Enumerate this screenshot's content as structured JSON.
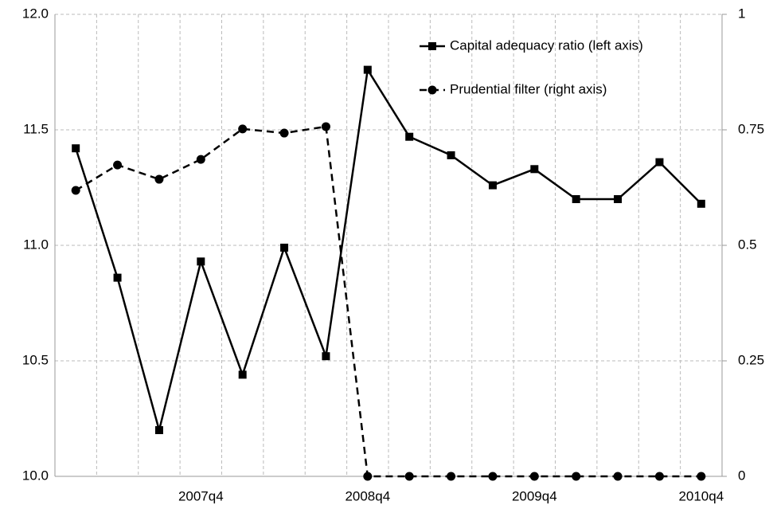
{
  "chart_data": {
    "type": "line",
    "categories": [
      null,
      null,
      null,
      "2007q4",
      null,
      null,
      null,
      "2008q4",
      null,
      null,
      null,
      "2009q4",
      null,
      null,
      null,
      "2010q4"
    ],
    "series": [
      {
        "name": "Capital adequacy ratio (left axis)",
        "color": "#000000",
        "marker": "square",
        "dash": false,
        "axis": "y",
        "values": [
          11.42,
          10.86,
          10.2,
          10.93,
          10.44,
          10.99,
          10.52,
          11.76,
          11.47,
          11.39,
          11.26,
          11.33,
          11.2,
          11.2,
          11.36,
          11.18
        ]
      },
      {
        "name": "Prudential filter (right axis)",
        "color": "#000000",
        "marker": "circle",
        "dash": true,
        "axis": "y2",
        "values": [
          0.619,
          0.674,
          0.643,
          0.686,
          0.752,
          0.743,
          0.757,
          0,
          0,
          0,
          0,
          0,
          0,
          0,
          0,
          0
        ]
      }
    ],
    "ylim": [
      10.0,
      12.0
    ],
    "yticks": [
      {
        "value": 10,
        "label": "10.0"
      },
      10.5,
      {
        "value": 11,
        "label": "11.0"
      },
      11.5,
      {
        "value": 12,
        "label": "12.0"
      }
    ],
    "y2lim": [
      0,
      1
    ],
    "y2ticks": [
      0,
      0.25,
      0.5,
      0.75,
      1
    ],
    "grid": true,
    "legend": "top-right"
  }
}
